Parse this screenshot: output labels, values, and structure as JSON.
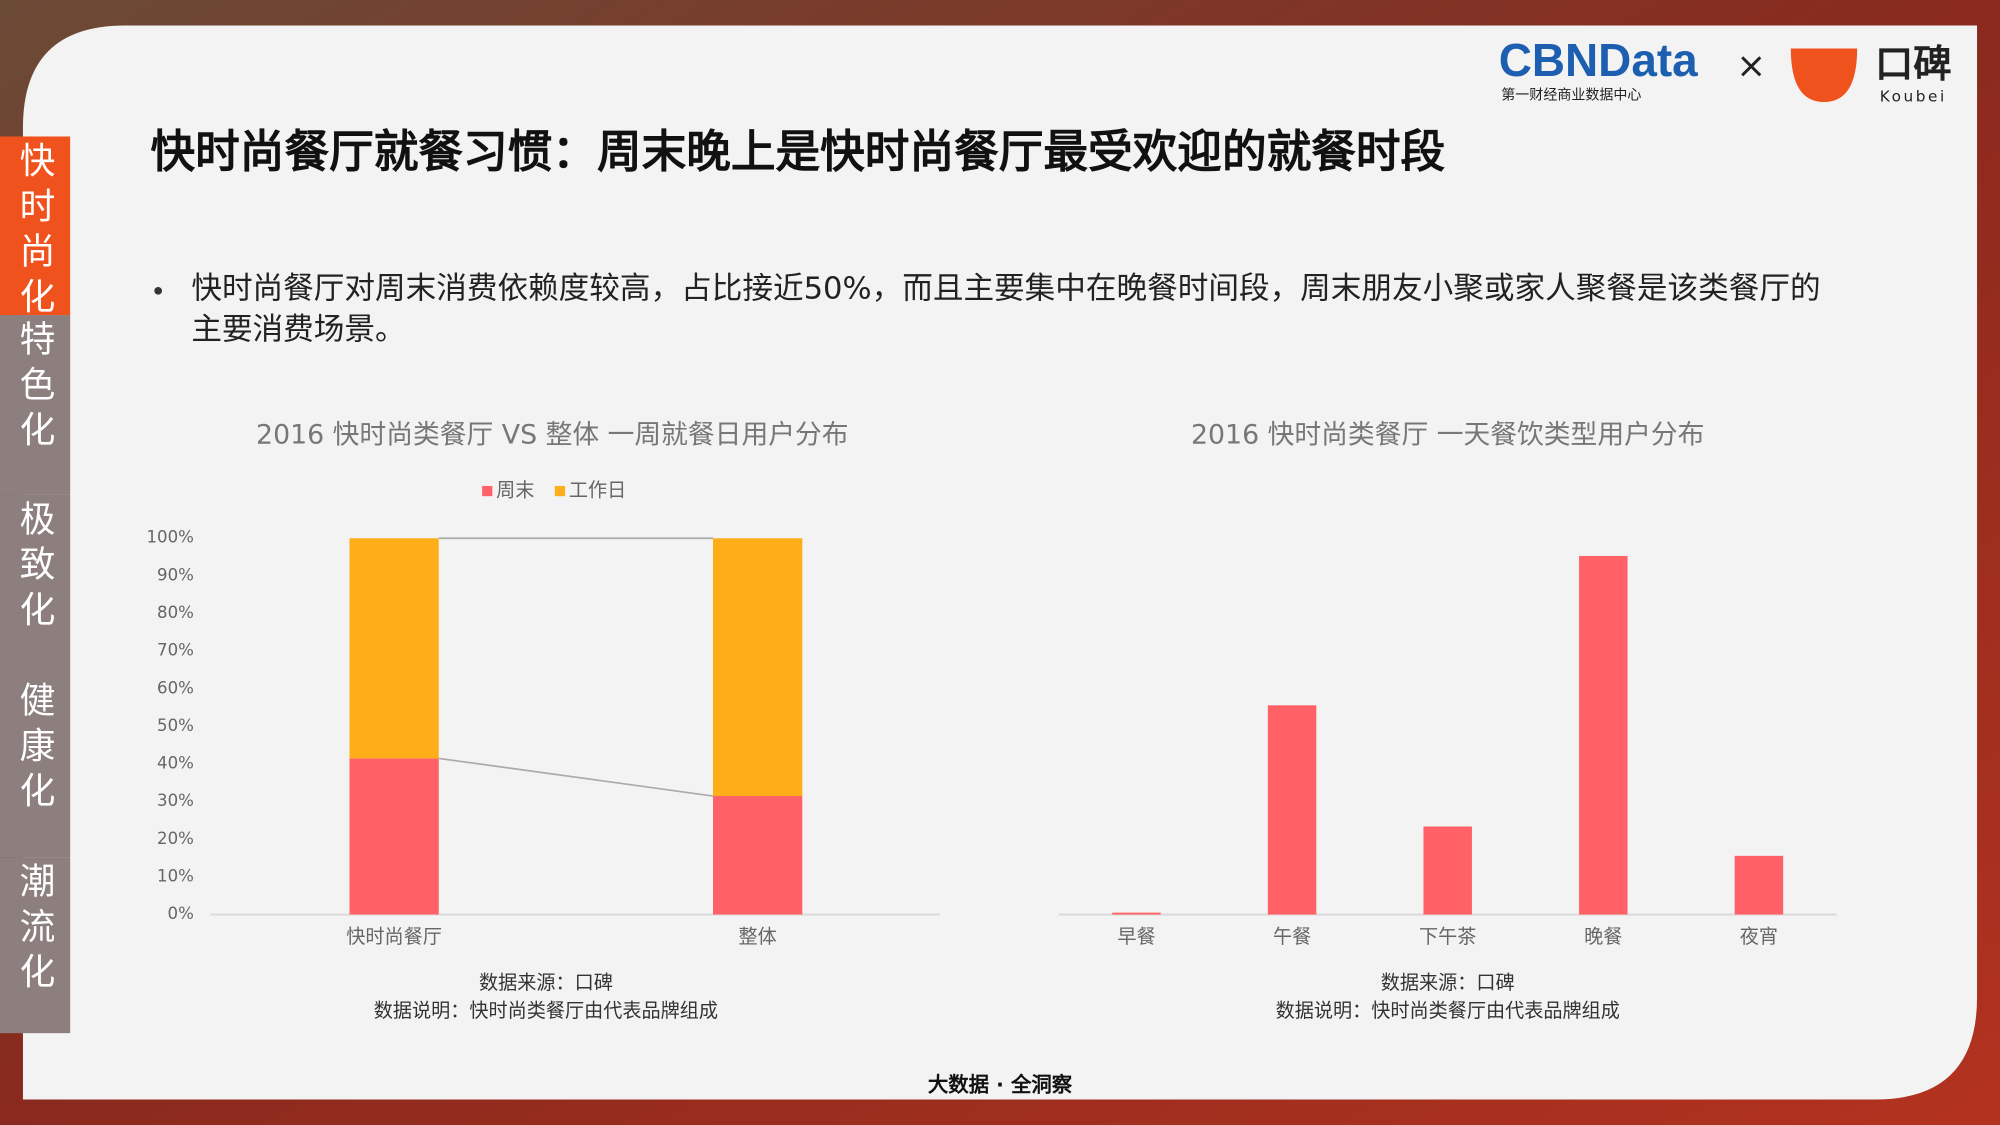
{
  "header": {
    "title": "快时尚餐厅就餐习惯：周末晚上是快时尚餐厅最受欢迎的就餐时段",
    "brand": "CBNData",
    "brand_sub": "第一财经商业数据中心",
    "times": "×",
    "partner": "口碑",
    "partner_sub": "Koubei"
  },
  "sidebar": [
    "快时尚化",
    "特色化",
    "极致化",
    "健康化",
    "潮流化"
  ],
  "bullet": "快时尚餐厅对周末消费依赖度较高，占比接近50%，而且主要集中在晚餐时间段，周末朋友小聚或家人聚餐是该类餐厅的主要消费场景。",
  "footer": "大数据 · 全洞察",
  "chart_data": [
    {
      "type": "bar",
      "stacked": true,
      "title": "2016 快时尚类餐厅 VS 整体 一周就餐日用户分布",
      "categories": [
        "快时尚餐厅",
        "整体"
      ],
      "series": [
        {
          "name": "周末",
          "color": "#ff6166",
          "values": [
            41.5,
            31.5
          ]
        },
        {
          "name": "工作日",
          "color": "#fdae19",
          "values": [
            58.5,
            68.5
          ]
        }
      ],
      "ylim": [
        0,
        100
      ],
      "yticks": [
        {
          "value": 0,
          "label": "0%"
        },
        {
          "value": 10,
          "label": "10%"
        },
        {
          "value": 20,
          "label": "20%"
        },
        {
          "value": 30,
          "label": "30%"
        },
        {
          "value": 40,
          "label": "40%"
        },
        {
          "value": 50,
          "label": "50%"
        },
        {
          "value": 60,
          "label": "60%"
        },
        {
          "value": 70,
          "label": "70%"
        },
        {
          "value": 80,
          "label": "80%"
        },
        {
          "value": 90,
          "label": "90%"
        },
        {
          "value": 100,
          "label": "100%"
        }
      ],
      "legend": "top",
      "source": "数据来源：口碑",
      "note": "数据说明：快时尚类餐厅由代表品牌组成"
    },
    {
      "type": "bar",
      "title": "2016 快时尚类餐厅 一天餐饮类型用户分布",
      "categories": [
        "早餐",
        "午餐",
        "下午茶",
        "晚餐",
        "夜宵"
      ],
      "values": [
        0.5,
        55.6,
        23.4,
        95.3,
        15.6
      ],
      "color": "#ff6166",
      "ylim": [
        0,
        100
      ],
      "source": "数据来源：口碑",
      "note": "数据说明：快时尚类餐厅由代表品牌组成"
    }
  ]
}
